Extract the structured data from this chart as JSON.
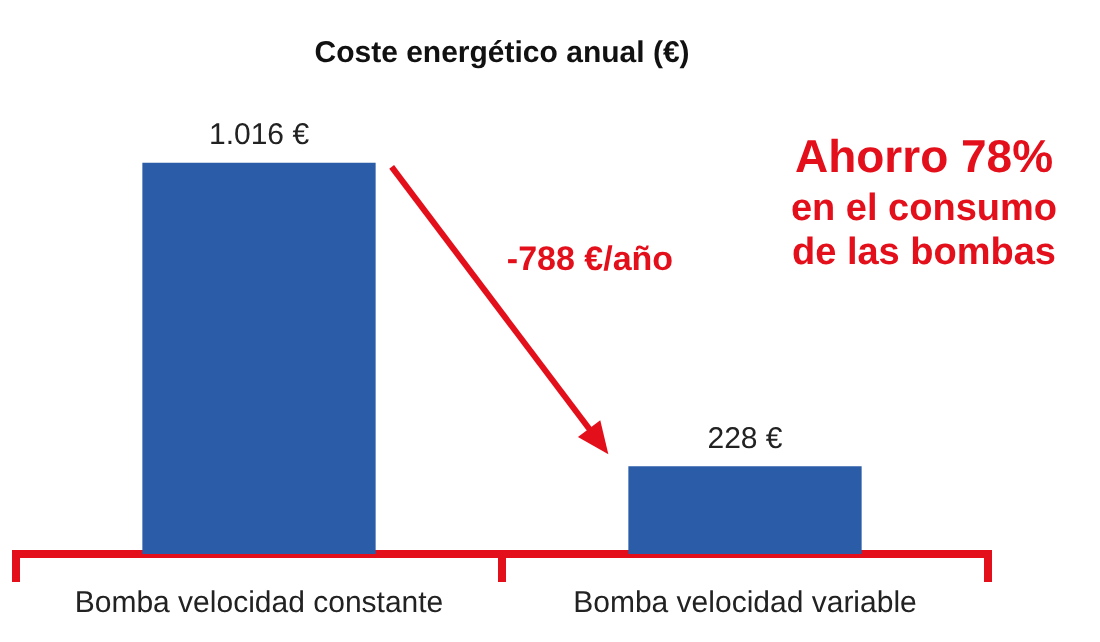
{
  "chart_data": {
    "type": "bar",
    "title": "Coste energético anual (€)",
    "categories": [
      "Bomba velocidad constante",
      "Bomba velocidad variable"
    ],
    "values": [
      1016,
      228
    ],
    "value_labels": [
      "1.016 €",
      "228 €"
    ],
    "color": "#2b5ca8",
    "annotations": [
      "-788 €/año",
      "Ahorro 78%",
      "en el consumo de las bombas"
    ],
    "grid": false,
    "legend": false
  }
}
